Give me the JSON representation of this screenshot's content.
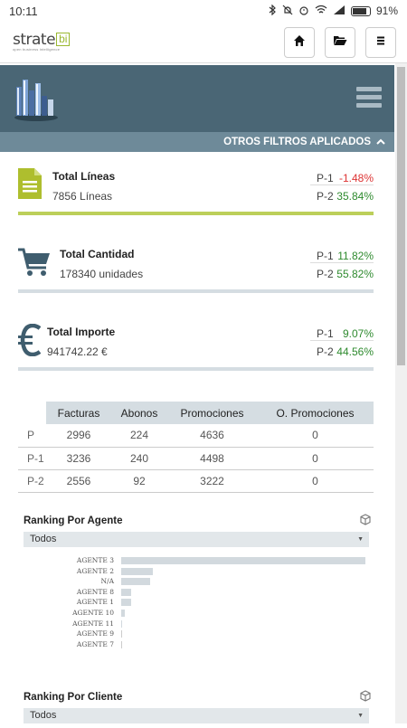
{
  "status": {
    "time": "10:11",
    "battery": "91%",
    "battery_level": 0.91
  },
  "topbar": {
    "logo_name": "strate",
    "logo_bi": "bi",
    "logo_sub": "open business intelligence",
    "buttons": [
      {
        "icon": "home-icon"
      },
      {
        "icon": "folder-open-icon"
      },
      {
        "icon": "menu-icon"
      }
    ]
  },
  "filters": {
    "label": "OTROS FILTROS APLICADOS"
  },
  "kpis": [
    {
      "title": "Total Líneas",
      "value": "7856 Líneas",
      "icon": "document-icon",
      "p1_label": "P-1",
      "p1_value": "-1.48%",
      "p2_label": "P-2",
      "p2_value": "35.84%",
      "accent": "#bccf5a"
    },
    {
      "title": "Total Cantidad",
      "value": "178340 unidades",
      "icon": "cart-icon",
      "p1_label": "P-1",
      "p1_value": "11.82%",
      "p2_label": "P-2",
      "p2_value": "55.82%",
      "accent": "#d5dde2"
    },
    {
      "title": "Total Importe",
      "value": "941742.22 €",
      "icon": "euro-icon",
      "p1_label": "P-1",
      "p1_value": "9.07%",
      "p2_label": "P-2",
      "p2_value": "44.56%",
      "accent": "#d5dde2"
    }
  ],
  "summary_table": {
    "headers": [
      "Facturas",
      "Abonos",
      "Promociones",
      "O. Promociones"
    ],
    "rows": [
      {
        "label": "P",
        "values": [
          "2996",
          "224",
          "4636",
          "0"
        ]
      },
      {
        "label": "P-1",
        "values": [
          "3236",
          "240",
          "4498",
          "0"
        ]
      },
      {
        "label": "P-2",
        "values": [
          "2556",
          "92",
          "3222",
          "0"
        ]
      }
    ]
  },
  "ranking_agente": {
    "title": "Ranking Por Agente",
    "select_value": "Todos",
    "chart_data": {
      "type": "bar",
      "orientation": "horizontal",
      "categories": [
        "AGENTE 3",
        "AGENTE 2",
        "N/A",
        "AGENTE 8",
        "AGENTE 1",
        "AGENTE 10",
        "AGENTE 11",
        "AGENTE 9",
        "AGENTE 7"
      ],
      "values": [
        100,
        13,
        12,
        4,
        4,
        1.5,
        0.5,
        0.3,
        0.2
      ],
      "grid": false
    }
  },
  "ranking_cliente": {
    "title": "Ranking Por Cliente",
    "select_value": "Todos"
  }
}
